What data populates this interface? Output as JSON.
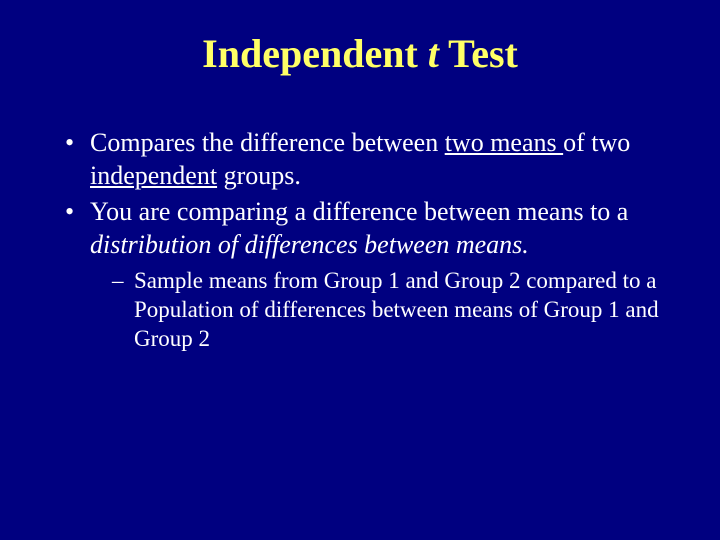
{
  "slide": {
    "background_color": "#000080",
    "title_color": "#ffff66",
    "body_color": "#ffffff",
    "title": {
      "prefix": "Independent ",
      "italic_word": "t",
      "suffix": " Test"
    },
    "bullets": [
      {
        "segments": [
          {
            "text": "Compares the difference between "
          },
          {
            "text": "two means ",
            "underline": true
          },
          {
            "text": "of two "
          },
          {
            "text": "independent",
            "underline": true
          },
          {
            "text": " groups."
          }
        ]
      },
      {
        "segments": [
          {
            "text": "You are comparing a difference between means to a "
          },
          {
            "text": "distribution of differences between means.",
            "italic": true
          }
        ],
        "sub_bullets": [
          {
            "text": "Sample means from Group 1 and Group 2 compared to a Population of differences between means of Group 1 and Group 2"
          }
        ]
      }
    ]
  }
}
